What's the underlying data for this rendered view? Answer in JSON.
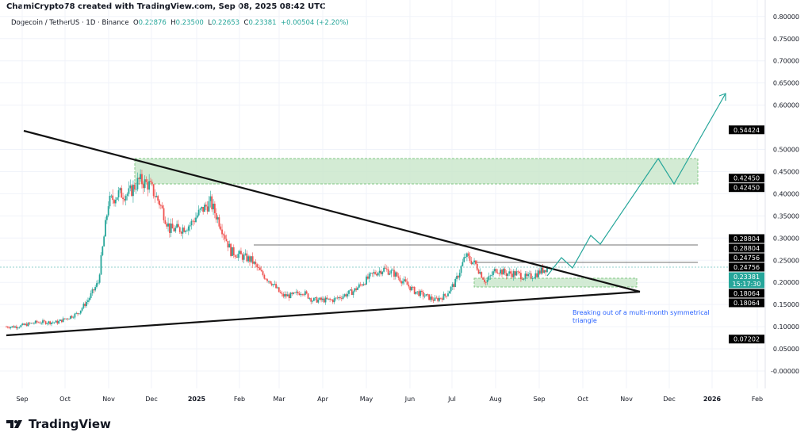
{
  "header": {
    "credit": "ChamiCrypto78 created with TradingView.com, Sep 08, 2025 08:42 UTC"
  },
  "legend": {
    "symbol": "Dogecoin / TetherUS · 1D · Binance",
    "o_label": "O",
    "o": "0.22876",
    "h_label": "H",
    "h": "0.23500",
    "l_label": "L",
    "l": "0.22653",
    "c_label": "C",
    "c": "0.23381",
    "change": "+0.00504 (+2.20%)"
  },
  "footer": {
    "brand": "TradingView"
  },
  "colors": {
    "up": "#26a69a",
    "down": "#ef5350",
    "zone": "#c8e6c9",
    "annotation": "#2962ff"
  },
  "chart_data": {
    "type": "candlestick",
    "title": "Dogecoin / TetherUS · 1D · Binance",
    "ylim": [
      0,
      0.8
    ],
    "y_ticks": [
      "0.80000",
      "0.75000",
      "0.70000",
      "0.65000",
      "0.60000",
      "0.50000",
      "0.45000",
      "0.40000",
      "0.35000",
      "0.30000",
      "0.25000",
      "0.20000",
      "0.15000",
      "0.10000",
      "0.05000",
      "-0.00000"
    ],
    "y_tick_values": [
      0.8,
      0.75,
      0.7,
      0.65,
      0.6,
      0.5,
      0.45,
      0.4,
      0.35,
      0.3,
      0.25,
      0.2,
      0.15,
      0.1,
      0.05,
      0
    ],
    "x_ticks": [
      "Sep",
      "Oct",
      "Nov",
      "Dec",
      "2025",
      "Feb",
      "Mar",
      "Apr",
      "May",
      "Jun",
      "Jul",
      "Aug",
      "Sep",
      "Oct",
      "Nov",
      "Dec",
      "2026",
      "Feb"
    ],
    "weekly_closes": [
      0.1,
      0.1,
      0.105,
      0.11,
      0.11,
      0.11,
      0.12,
      0.13,
      0.16,
      0.2,
      0.38,
      0.4,
      0.4,
      0.43,
      0.42,
      0.38,
      0.32,
      0.32,
      0.33,
      0.36,
      0.38,
      0.33,
      0.27,
      0.26,
      0.25,
      0.22,
      0.2,
      0.17,
      0.17,
      0.18,
      0.16,
      0.16,
      0.16,
      0.17,
      0.18,
      0.2,
      0.22,
      0.23,
      0.22,
      0.2,
      0.18,
      0.17,
      0.16,
      0.17,
      0.2,
      0.26,
      0.24,
      0.2,
      0.23,
      0.22,
      0.22,
      0.21,
      0.22,
      0.2338
    ],
    "price_labels": [
      {
        "text": "0.54424",
        "v": 0.54424
      },
      {
        "text": "0.42450",
        "v": 0.4245,
        "off": -1
      },
      {
        "text": "0.42450",
        "v": 0.4245,
        "off": 1
      },
      {
        "text": "0.28804",
        "v": 0.28804,
        "off": -1
      },
      {
        "text": "0.28804",
        "v": 0.28804,
        "off": 1
      },
      {
        "text": "0.24756",
        "v": 0.24756,
        "off": -1
      },
      {
        "text": "0.24756",
        "v": 0.24756,
        "off": 1
      },
      {
        "text": "0.18064",
        "v": 0.18064,
        "off": -1
      },
      {
        "text": "0.18064",
        "v": 0.18064,
        "off": 1
      },
      {
        "text": "0.07202",
        "v": 0.07202
      }
    ],
    "current_price": {
      "price": "0.23381",
      "countdown": "15:17:30",
      "v": 0.23381
    },
    "annotation": "Breaking out of a multi-month symmetrical triangle"
  }
}
